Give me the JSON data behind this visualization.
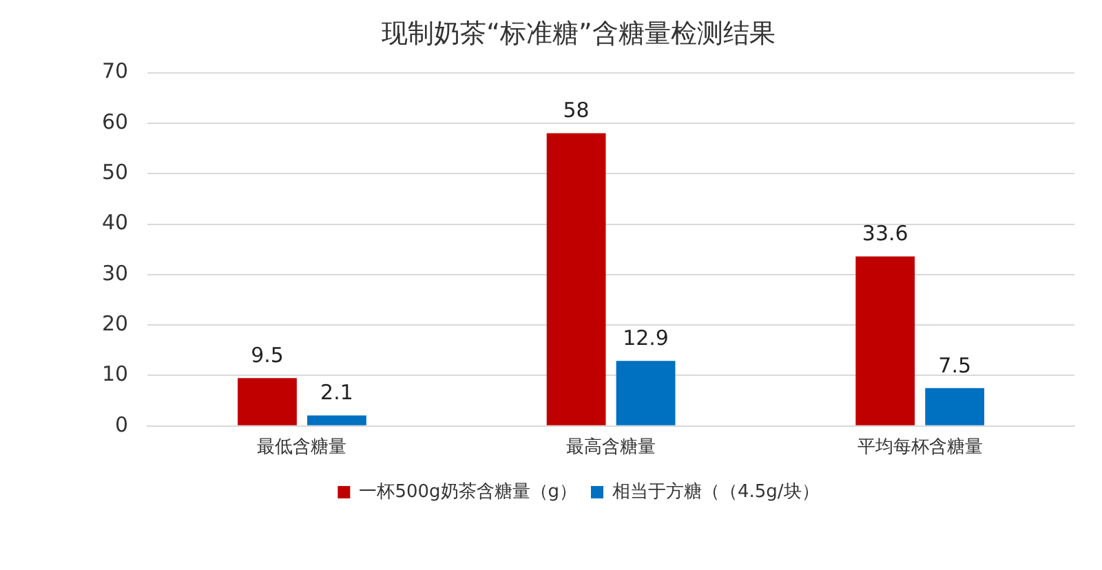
{
  "chart_data": {
    "type": "bar",
    "title": "现制奶茶“标准糖”含糖量检测结果",
    "categories": [
      "最低含糖量",
      "最高含糖量",
      "平均每杯含糖量"
    ],
    "series": [
      {
        "name": "一杯500g奶茶含糖量（g）",
        "color": "#c00000",
        "values": [
          9.5,
          58,
          33.6
        ]
      },
      {
        "name": "相当于方糖（（4.5g/块）",
        "color": "#0070c0",
        "values": [
          2.1,
          12.9,
          7.5
        ]
      }
    ],
    "ylim": [
      0,
      70
    ],
    "yticks": [
      0,
      10,
      20,
      30,
      40,
      50,
      60,
      70
    ],
    "grid": "y",
    "legend": "bottom",
    "data_labels": true
  }
}
